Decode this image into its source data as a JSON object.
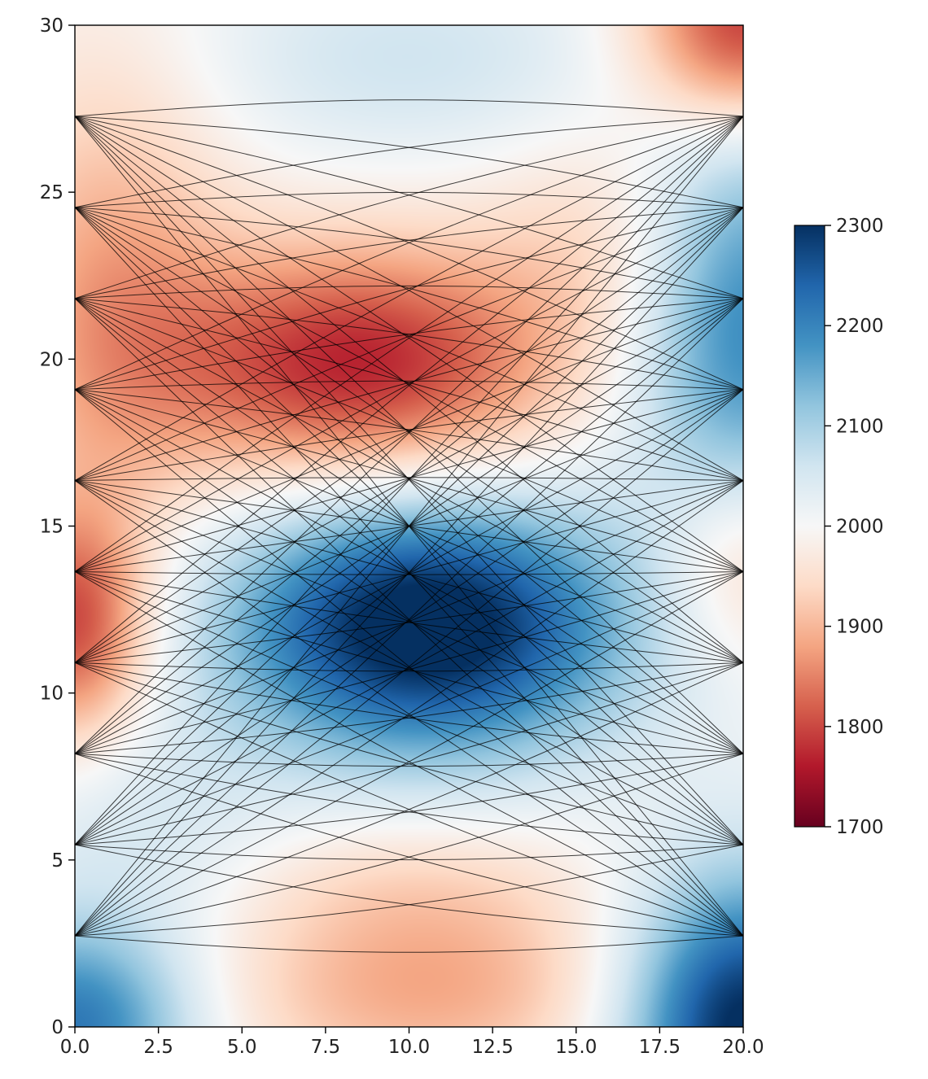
{
  "chart_data": {
    "type": "heatmap",
    "title": "",
    "xlabel": "",
    "ylabel": "",
    "xlim": [
      0,
      20
    ],
    "ylim": [
      0,
      30
    ],
    "x_ticks": [
      "0.0",
      "2.5",
      "5.0",
      "7.5",
      "10.0",
      "12.5",
      "15.0",
      "17.5",
      "20.0"
    ],
    "y_ticks": [
      "0",
      "5",
      "10",
      "15",
      "20",
      "25",
      "30"
    ],
    "colormap": "RdBu",
    "colorbar": {
      "range": [
        1700,
        2300
      ],
      "ticks": [
        "1700",
        "1800",
        "1900",
        "2000",
        "2100",
        "2200",
        "2300"
      ],
      "colors": [
        "#67001f",
        "#b2182b",
        "#d6604d",
        "#f4a582",
        "#fddbc7",
        "#f7f7f7",
        "#d1e5f0",
        "#92c5de",
        "#4393c3",
        "#2166ac",
        "#053061"
      ]
    },
    "velocity_field": {
      "background": 2000,
      "anomalies": [
        {
          "x": 10.5,
          "y": 12,
          "sx": 4.2,
          "sy": 2.8,
          "amp": 340
        },
        {
          "x": 8.5,
          "y": 19.8,
          "sx": 4.2,
          "sy": 2.6,
          "amp": -235
        },
        {
          "x": 0,
          "y": 12,
          "sx": 1.6,
          "sy": 2.5,
          "amp": -200
        },
        {
          "x": 20,
          "y": 30,
          "sx": 2.2,
          "sy": 2.2,
          "amp": -230
        },
        {
          "x": 10.5,
          "y": 1.2,
          "sx": 4.5,
          "sy": 2.2,
          "amp": -115
        },
        {
          "x": 20,
          "y": 0,
          "sx": 2.5,
          "sy": 3.2,
          "amp": 320
        },
        {
          "x": 0,
          "y": 0,
          "sx": 2.5,
          "sy": 2.2,
          "amp": 220
        },
        {
          "x": 20,
          "y": 21,
          "sx": 2.4,
          "sy": 4.5,
          "amp": 200
        },
        {
          "x": 10,
          "y": 29,
          "sx": 4.5,
          "sy": 2.2,
          "amp": 60
        },
        {
          "x": 1,
          "y": 22,
          "sx": 2.5,
          "sy": 5,
          "amp": -110
        },
        {
          "x": 20,
          "y": 14,
          "sx": 1.8,
          "sy": 2.2,
          "amp": -100
        },
        {
          "x": 2,
          "y": 6,
          "sx": 3,
          "sy": 2.5,
          "amp": 50
        },
        {
          "x": 10,
          "y": 4.5,
          "sx": 4,
          "sy": 1.5,
          "amp": -40
        },
        {
          "x": 16,
          "y": 23.5,
          "sx": 2.5,
          "sy": 2.5,
          "amp": -60
        }
      ]
    },
    "sources": {
      "x": 0,
      "y": [
        2.727,
        5.455,
        8.182,
        10.909,
        13.636,
        16.364,
        19.091,
        21.818,
        24.545,
        27.273
      ]
    },
    "receivers": {
      "x": 20,
      "y": [
        2.727,
        5.455,
        8.182,
        10.909,
        13.636,
        16.364,
        19.091,
        21.818,
        24.545,
        27.273
      ]
    },
    "ray_paths": "all source-receiver pairs (10 x 10), curved through velocity field",
    "ray_color": "#000000"
  }
}
